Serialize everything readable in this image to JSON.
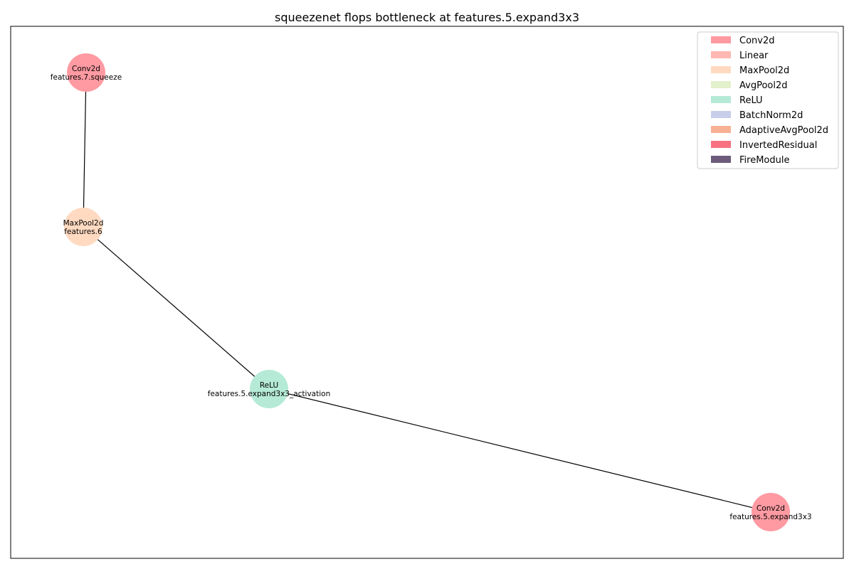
{
  "title": "squeezenet flops bottleneck at features.5.expand3x3",
  "legend": {
    "items": [
      {
        "label": "Conv2d",
        "color": "#ff9aa2"
      },
      {
        "label": "Linear",
        "color": "#ffb7b2"
      },
      {
        "label": "MaxPool2d",
        "color": "#ffdac1"
      },
      {
        "label": "AvgPool2d",
        "color": "#e2f0cb"
      },
      {
        "label": "ReLU",
        "color": "#b5ead7"
      },
      {
        "label": "BatchNorm2d",
        "color": "#c7ceea"
      },
      {
        "label": "AdaptiveAvgPool2d",
        "color": "#f8b195"
      },
      {
        "label": "InvertedResidual",
        "color": "#f67280"
      },
      {
        "label": "FireModule",
        "color": "#6c5b7b"
      }
    ]
  },
  "nodes": [
    {
      "id": "n1",
      "type": "Conv2d",
      "name": "features.7.squeeze",
      "color": "#ff9aa2"
    },
    {
      "id": "n2",
      "type": "MaxPool2d",
      "name": "features.6",
      "color": "#ffdac1"
    },
    {
      "id": "n3",
      "type": "ReLU",
      "name": "features.5.expand3x3_activation",
      "color": "#b5ead7"
    },
    {
      "id": "n4",
      "type": "Conv2d",
      "name": "features.5.expand3x3",
      "color": "#ff9aa2"
    }
  ],
  "edges": [
    {
      "from": "n1",
      "to": "n2"
    },
    {
      "from": "n2",
      "to": "n3"
    },
    {
      "from": "n3",
      "to": "n4"
    }
  ]
}
